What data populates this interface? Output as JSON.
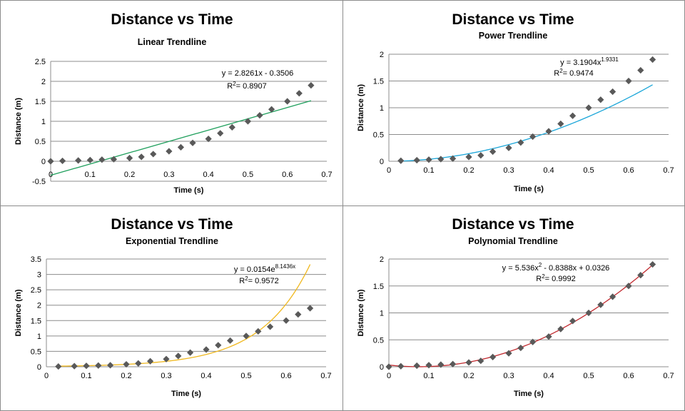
{
  "chart_data": [
    {
      "type": "scatter",
      "title": "Distance vs Time",
      "subtitle": "Linear Trendline",
      "xlabel": "Time (s)",
      "ylabel": "Distance  (m)",
      "xlim": [
        0,
        0.7
      ],
      "ylim": [
        -0.5,
        2.5
      ],
      "xticks": [
        "0",
        "0.1",
        "0.2",
        "0.3",
        "0.4",
        "0.5",
        "0.6",
        "0.7"
      ],
      "yticks": [
        "-0.5",
        "0",
        "0.5",
        "1",
        "1.5",
        "2",
        "2.5"
      ],
      "grid": true,
      "series": [
        {
          "x": [
            0,
            0.03,
            0.07,
            0.1,
            0.13,
            0.16,
            0.2,
            0.23,
            0.26,
            0.3,
            0.33,
            0.36,
            0.4,
            0.43,
            0.46,
            0.5,
            0.53,
            0.56,
            0.6,
            0.63,
            0.66
          ],
          "y": [
            0,
            0.01,
            0.02,
            0.03,
            0.04,
            0.05,
            0.08,
            0.11,
            0.18,
            0.25,
            0.35,
            0.46,
            0.56,
            0.7,
            0.85,
            1.0,
            1.15,
            1.3,
            1.5,
            1.7,
            1.9
          ],
          "color": "#595959"
        }
      ],
      "trendline": {
        "kind": "linear",
        "coef": [
          2.8261,
          -0.3506
        ],
        "x_from": 0,
        "x_to": 0.66,
        "color": "#1f9f5c"
      },
      "equation": "y = 2.8261x - 0.3506",
      "r2": "= 0.8907"
    },
    {
      "type": "scatter",
      "title": "Distance vs Time",
      "subtitle": "Power Trendline",
      "xlabel": "Time (s)",
      "ylabel": "Distance  (m)",
      "xlim": [
        0,
        0.7
      ],
      "ylim": [
        0,
        2
      ],
      "xticks": [
        "0",
        "0.1",
        "0.2",
        "0.3",
        "0.4",
        "0.5",
        "0.6",
        "0.7"
      ],
      "yticks": [
        "0",
        "0.5",
        "1",
        "1.5",
        "2"
      ],
      "grid": true,
      "series": [
        {
          "x": [
            0.03,
            0.07,
            0.1,
            0.13,
            0.16,
            0.2,
            0.23,
            0.26,
            0.3,
            0.33,
            0.36,
            0.4,
            0.43,
            0.46,
            0.5,
            0.53,
            0.56,
            0.6,
            0.63,
            0.66
          ],
          "y": [
            0.01,
            0.02,
            0.03,
            0.04,
            0.05,
            0.08,
            0.11,
            0.18,
            0.25,
            0.35,
            0.46,
            0.56,
            0.7,
            0.85,
            1.0,
            1.15,
            1.3,
            1.5,
            1.7,
            1.9
          ],
          "color": "#595959"
        }
      ],
      "trendline": {
        "kind": "power",
        "coef": [
          3.1904,
          1.9331
        ],
        "x_from": 0.03,
        "x_to": 0.66,
        "color": "#1aa6d9"
      },
      "equation": "y = 3.1904x",
      "equation_sup": "1.9331",
      "r2": "= 0.9474"
    },
    {
      "type": "scatter",
      "title": "Distance vs Time",
      "subtitle": "Exponential Trendline",
      "xlabel": "Time (s)",
      "ylabel": "Distance  (m)",
      "xlim": [
        0,
        0.7
      ],
      "ylim": [
        0,
        3.5
      ],
      "xticks": [
        "0",
        "0.1",
        "0.2",
        "0.3",
        "0.4",
        "0.5",
        "0.6",
        "0.7"
      ],
      "yticks": [
        "0",
        "0.5",
        "1",
        "1.5",
        "2",
        "2.5",
        "3",
        "3.5"
      ],
      "grid": true,
      "series": [
        {
          "x": [
            0.03,
            0.07,
            0.1,
            0.13,
            0.16,
            0.2,
            0.23,
            0.26,
            0.3,
            0.33,
            0.36,
            0.4,
            0.43,
            0.46,
            0.5,
            0.53,
            0.56,
            0.6,
            0.63,
            0.66
          ],
          "y": [
            0.01,
            0.02,
            0.03,
            0.04,
            0.05,
            0.08,
            0.11,
            0.18,
            0.25,
            0.35,
            0.46,
            0.56,
            0.7,
            0.85,
            1.0,
            1.15,
            1.3,
            1.5,
            1.7,
            1.9
          ],
          "color": "#595959"
        }
      ],
      "trendline": {
        "kind": "exponential",
        "coef": [
          0.0154,
          8.1436
        ],
        "x_from": 0.03,
        "x_to": 0.66,
        "color": "#f0b81e"
      },
      "equation": "y = 0.0154e",
      "equation_sup": "8.1436x",
      "r2": "= 0.9572"
    },
    {
      "type": "scatter",
      "title": "Distance vs Time",
      "subtitle": "Polynomial Trendline",
      "xlabel": "Time (s)",
      "ylabel": "Distance  (m)",
      "xlim": [
        0,
        0.7
      ],
      "ylim": [
        0,
        2
      ],
      "xticks": [
        "0",
        "0.1",
        "0.2",
        "0.3",
        "0.4",
        "0.5",
        "0.6",
        "0.7"
      ],
      "yticks": [
        "0",
        "0.5",
        "1",
        "1.5",
        "2"
      ],
      "grid": true,
      "series": [
        {
          "x": [
            0,
            0.03,
            0.07,
            0.1,
            0.13,
            0.16,
            0.2,
            0.23,
            0.26,
            0.3,
            0.33,
            0.36,
            0.4,
            0.43,
            0.46,
            0.5,
            0.53,
            0.56,
            0.6,
            0.63,
            0.66
          ],
          "y": [
            0,
            0.01,
            0.02,
            0.03,
            0.04,
            0.05,
            0.08,
            0.11,
            0.18,
            0.25,
            0.35,
            0.46,
            0.56,
            0.7,
            0.85,
            1.0,
            1.15,
            1.3,
            1.5,
            1.7,
            1.9
          ],
          "color": "#595959"
        }
      ],
      "trendline": {
        "kind": "polynomial",
        "coef": [
          5.536,
          -0.8388,
          0.0326
        ],
        "x_from": 0,
        "x_to": 0.66,
        "color": "#c0282d"
      },
      "equation": "y = 5.536x",
      "equation_sup": "2",
      "equation_rest": " - 0.8388x + 0.0326",
      "r2": "= 0.9992"
    }
  ]
}
